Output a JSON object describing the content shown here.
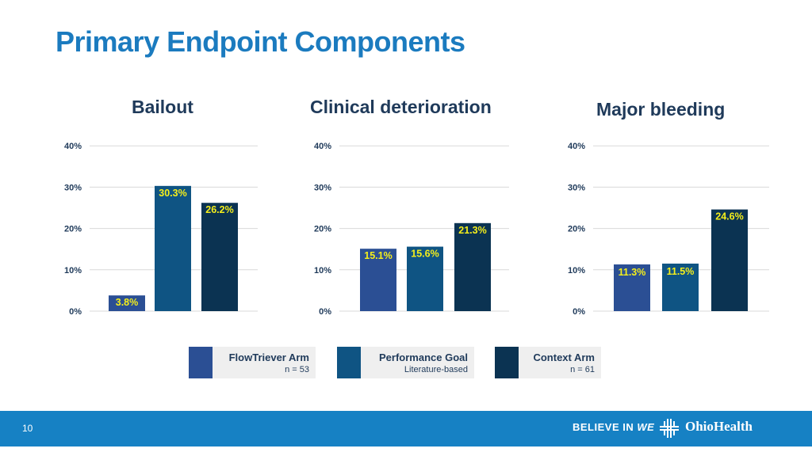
{
  "slide": {
    "title": "Primary Endpoint Components",
    "page_number": "10"
  },
  "colors": {
    "flowtriever_arm": "#2b4f94",
    "performance_goal": "#0f5483",
    "context_arm": "#0b3352",
    "data_label": "#f5ef1b",
    "title": "#1b7bbf",
    "footer": "#1681c4"
  },
  "legend": [
    {
      "name": "FlowTriever Arm",
      "note": "n = 53",
      "color": "#2b4f94"
    },
    {
      "name": "Performance Goal",
      "note": "Literature-based",
      "color": "#0f5483"
    },
    {
      "name": "Context Arm",
      "note": "n = 61",
      "color": "#0b3352"
    }
  ],
  "footer": {
    "tagline_prefix": "BELIEVE IN ",
    "tagline_emphasis": "WE",
    "brand": "OhioHealth",
    "logo_icon": "ohiohealth-cross-logo"
  },
  "chart_data": [
    {
      "type": "bar",
      "title": "Bailout",
      "categories": [
        "FlowTriever Arm",
        "Performance Goal",
        "Context Arm"
      ],
      "values": [
        3.8,
        30.3,
        26.2
      ],
      "value_labels": [
        "3.8%",
        "30.3%",
        "26.2%"
      ],
      "ylim": [
        0,
        40
      ],
      "yticks": [
        "0%",
        "10%",
        "20%",
        "30%",
        "40%"
      ],
      "grid": true
    },
    {
      "type": "bar",
      "title": "Clinical deterioration",
      "categories": [
        "FlowTriever Arm",
        "Performance Goal",
        "Context Arm"
      ],
      "values": [
        15.1,
        15.6,
        21.3
      ],
      "value_labels": [
        "15.1%",
        "15.6%",
        "21.3%"
      ],
      "ylim": [
        0,
        40
      ],
      "yticks": [
        "0%",
        "10%",
        "20%",
        "30%",
        "40%"
      ],
      "grid": true
    },
    {
      "type": "bar",
      "title": "Major bleeding",
      "categories": [
        "FlowTriever Arm",
        "Performance Goal",
        "Context Arm"
      ],
      "values": [
        11.3,
        11.5,
        24.6
      ],
      "value_labels": [
        "11.3%",
        "11.5%",
        "24.6%"
      ],
      "ylim": [
        0,
        40
      ],
      "yticks": [
        "0%",
        "10%",
        "20%",
        "30%",
        "40%"
      ],
      "grid": true
    }
  ]
}
